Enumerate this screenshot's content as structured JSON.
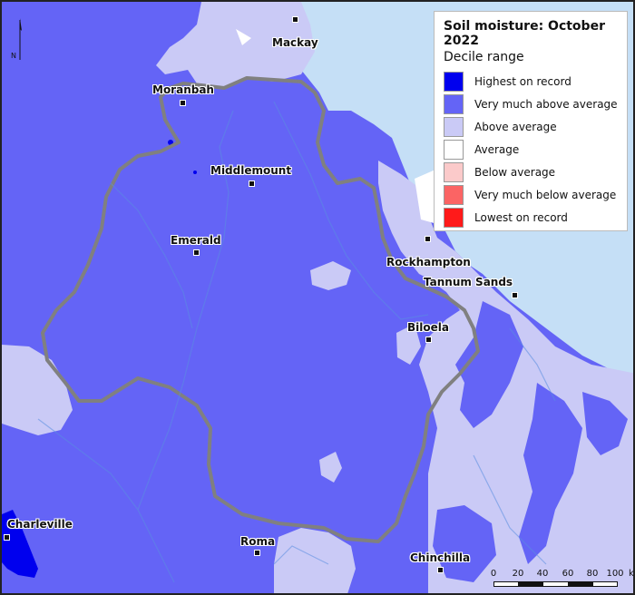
{
  "legend": {
    "title": "Soil moisture: October 2022",
    "subtitle": "Decile range",
    "items": [
      {
        "label": "Highest on record",
        "color": "#0000ee"
      },
      {
        "label": "Very much above average",
        "color": "#6464f6"
      },
      {
        "label": "Above average",
        "color": "#cacaf6"
      },
      {
        "label": "Average",
        "color": "#ffffff"
      },
      {
        "label": "Below average",
        "color": "#fbcaca"
      },
      {
        "label": "Very much below average",
        "color": "#fb6464"
      },
      {
        "label": "Lowest on record",
        "color": "#ff1a1a"
      }
    ]
  },
  "colors": {
    "sea": "#c5dff6",
    "very_much_above": "#6464f6",
    "above": "#cacaf6",
    "highest": "#0000ee",
    "boundary": "#808080",
    "rivers": "#5a8ee0"
  },
  "towns": {
    "mackay": "Mackay",
    "moranbah": "Moranbah",
    "middlemount": "Middlemount",
    "emerald": "Emerald",
    "rockhampton": "Rockhampton",
    "tannum_sands": "Tannum Sands",
    "biloela": "Biloela",
    "charleville": "Charleville",
    "roma": "Roma",
    "chinchilla": "Chinchilla"
  },
  "north_label": "N",
  "scale_bar": {
    "ticks": [
      "0",
      "20",
      "40",
      "60",
      "80",
      "100"
    ],
    "unit": "km"
  }
}
